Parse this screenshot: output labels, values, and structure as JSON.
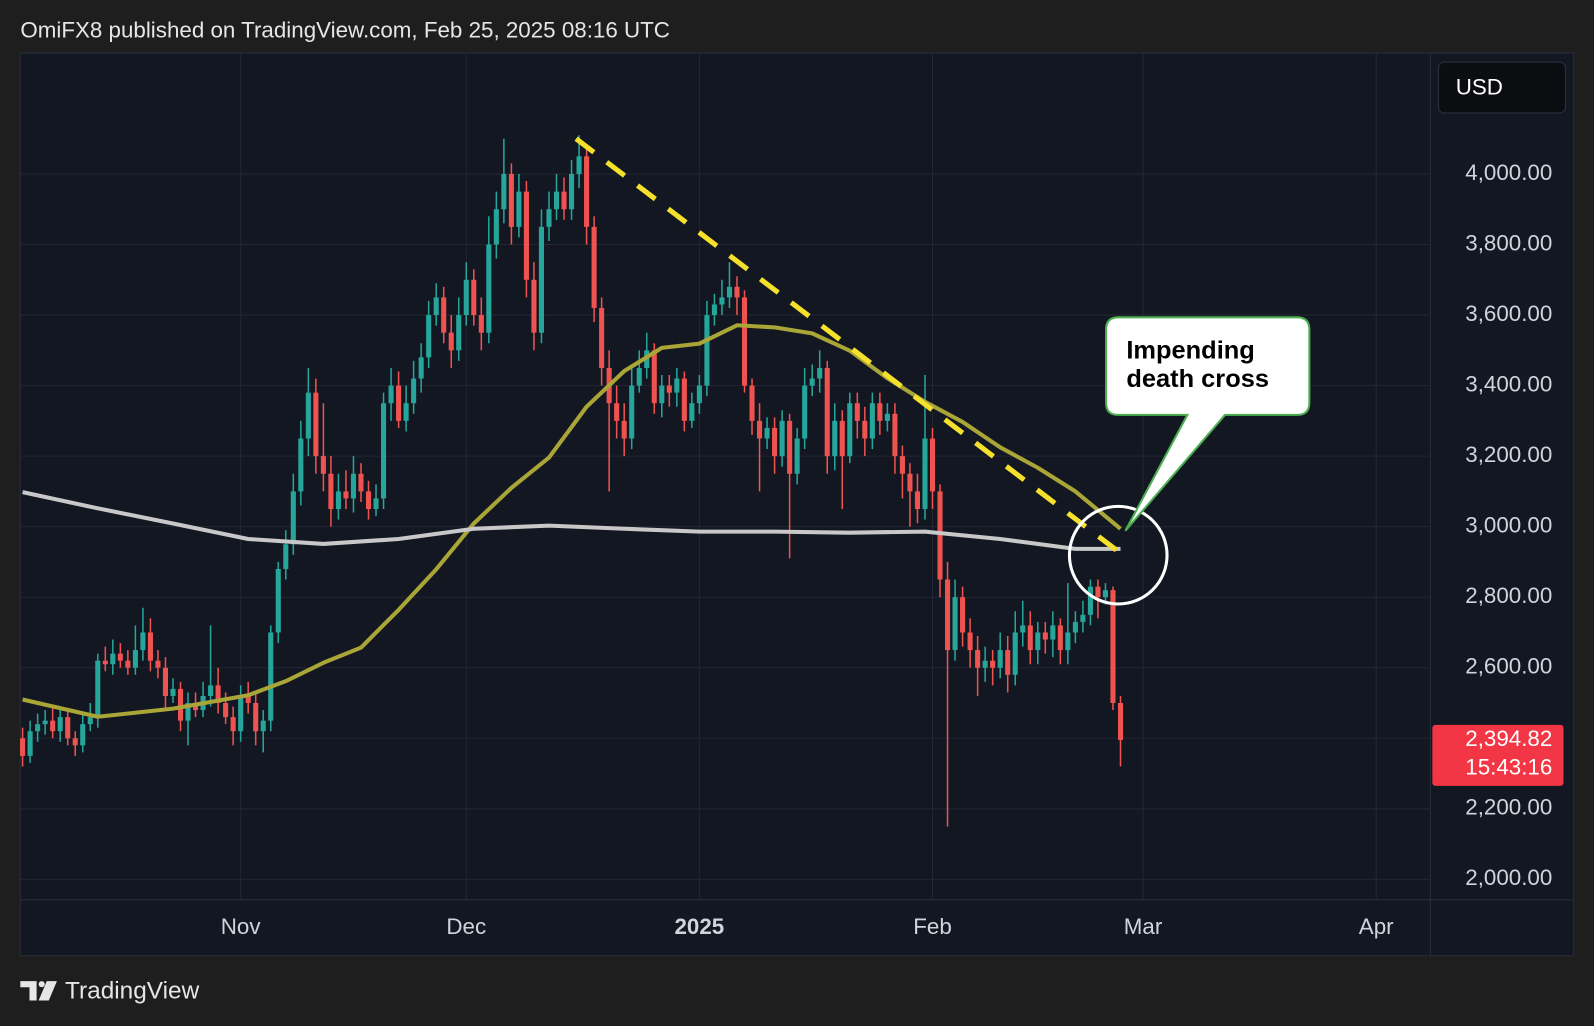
{
  "chart_data": {
    "type": "candlestick",
    "title": "OmiFX8 published on TradingView.com, Feb 25, 2025 08:16 UTC",
    "currency": "USD",
    "watermark": "TradingView",
    "annotation": [
      "Impending",
      "death cross"
    ],
    "last_price": {
      "value": 2394.82,
      "label": "2,394.82"
    },
    "countdown": "15:43:16",
    "up_color": "#26a69a",
    "down_color": "#ef5350",
    "grid": true,
    "xlim": [
      -0.3,
      187.2
    ],
    "xticks": [
      {
        "value": 29,
        "label": "Nov"
      },
      {
        "value": 59,
        "label": "Dec"
      },
      {
        "value": 90,
        "label": "2025"
      },
      {
        "value": 121,
        "label": "Feb"
      },
      {
        "value": 149,
        "label": "Mar"
      },
      {
        "value": 180,
        "label": "Apr"
      }
    ],
    "ylim": [
      1942,
      4343
    ],
    "yticks": [
      {
        "value": 2000,
        "label": "2,000.00"
      },
      {
        "value": 2200,
        "label": "2,200.00"
      },
      {
        "value": 2400,
        "label": "2,400.00"
      },
      {
        "value": 2600,
        "label": "2,600.00"
      },
      {
        "value": 2800,
        "label": "2,800.00"
      },
      {
        "value": 3000,
        "label": "3,000.00"
      },
      {
        "value": 3200,
        "label": "3,200.00"
      },
      {
        "value": 3400,
        "label": "3,400.00"
      },
      {
        "value": 3600,
        "label": "3,600.00"
      },
      {
        "value": 3800,
        "label": "3,800.00"
      },
      {
        "value": 4000,
        "label": "4,000.00"
      }
    ],
    "candles": {
      "open": [
        2400,
        2350,
        2420,
        2440,
        2450,
        2420,
        2460,
        2400,
        2380,
        2440,
        2460,
        2620,
        2610,
        2640,
        2620,
        2600,
        2650,
        2700,
        2620,
        2600,
        2520,
        2540,
        2450,
        2500,
        2480,
        2520,
        2550,
        2500,
        2460,
        2420,
        2520,
        2500,
        2420,
        2450,
        2700,
        2880,
        2950,
        3100,
        3250,
        3380,
        3200,
        3150,
        3050,
        3100,
        3080,
        3150,
        3100,
        3050,
        3080,
        3350,
        3400,
        3300,
        3350,
        3420,
        3480,
        3600,
        3650,
        3550,
        3500,
        3600,
        3700,
        3600,
        3550,
        3800,
        3900,
        4000,
        3850,
        3950,
        3700,
        3550,
        3850,
        3900,
        3950,
        3900,
        4000,
        4050,
        3850,
        3620,
        3450,
        3350,
        3300,
        3250,
        3400,
        3450,
        3500,
        3350,
        3400,
        3380,
        3420,
        3300,
        3350,
        3400,
        3600,
        3630,
        3650,
        3680,
        3650,
        3400,
        3300,
        3250,
        3280,
        3200,
        3300,
        3150,
        3250,
        3400,
        3420,
        3450,
        3200,
        3300,
        3200,
        3350,
        3300,
        3250,
        3350,
        3300,
        3320,
        3200,
        3150,
        3100,
        3050,
        3250,
        3100,
        2850,
        2650,
        2800,
        2700,
        2650,
        2600,
        2620,
        2600,
        2650,
        2580,
        2700,
        2720,
        2650,
        2700,
        2680,
        2720,
        2650,
        2700,
        2730,
        2750,
        2830,
        2800,
        2820,
        2500
      ],
      "high": [
        2430,
        2450,
        2470,
        2480,
        2490,
        2490,
        2480,
        2420,
        2470,
        2500,
        2640,
        2660,
        2680,
        2670,
        2650,
        2720,
        2770,
        2740,
        2650,
        2630,
        2570,
        2560,
        2530,
        2530,
        2560,
        2720,
        2600,
        2530,
        2490,
        2550,
        2560,
        2530,
        2480,
        2720,
        2900,
        2990,
        3150,
        3300,
        3450,
        3420,
        3350,
        3200,
        3150,
        3160,
        3200,
        3180,
        3130,
        3120,
        3380,
        3450,
        3440,
        3400,
        3470,
        3520,
        3640,
        3690,
        3680,
        3600,
        3650,
        3750,
        3730,
        3650,
        3880,
        3950,
        4100,
        4030,
        4000,
        3980,
        3750,
        3900,
        3950,
        4000,
        3990,
        4040,
        4110,
        4080,
        3880,
        3650,
        3500,
        3400,
        3350,
        3450,
        3500,
        3550,
        3520,
        3430,
        3430,
        3450,
        3440,
        3380,
        3430,
        3640,
        3660,
        3700,
        3750,
        3710,
        3670,
        3420,
        3350,
        3310,
        3310,
        3330,
        3320,
        3280,
        3450,
        3460,
        3500,
        3470,
        3350,
        3330,
        3380,
        3380,
        3340,
        3380,
        3380,
        3350,
        3350,
        3230,
        3180,
        3150,
        3430,
        3280,
        3120,
        2900,
        2850,
        2830,
        2740,
        2690,
        2660,
        2650,
        2700,
        2690,
        2760,
        2790,
        2760,
        2730,
        2730,
        2760,
        2740,
        2840,
        2760,
        2790,
        2850,
        2850,
        2840,
        2830,
        2520
      ],
      "low": [
        2320,
        2330,
        2390,
        2410,
        2400,
        2390,
        2380,
        2350,
        2360,
        2420,
        2430,
        2590,
        2580,
        2600,
        2580,
        2580,
        2620,
        2590,
        2570,
        2480,
        2500,
        2420,
        2380,
        2460,
        2460,
        2490,
        2470,
        2440,
        2380,
        2390,
        2470,
        2380,
        2360,
        2420,
        2670,
        2850,
        2920,
        3060,
        3200,
        3150,
        3100,
        3000,
        3020,
        3050,
        3040,
        3070,
        3020,
        3030,
        3050,
        3300,
        3280,
        3270,
        3320,
        3380,
        3450,
        3570,
        3520,
        3450,
        3470,
        3570,
        3570,
        3500,
        3520,
        3760,
        3860,
        3800,
        3820,
        3650,
        3500,
        3520,
        3810,
        3870,
        3870,
        3870,
        3960,
        3800,
        3580,
        3400,
        3100,
        3250,
        3200,
        3220,
        3380,
        3420,
        3320,
        3310,
        3340,
        3340,
        3270,
        3280,
        3320,
        3370,
        3570,
        3600,
        3620,
        3600,
        3380,
        3260,
        3100,
        3220,
        3150,
        3170,
        2910,
        3120,
        3220,
        3370,
        3380,
        3150,
        3160,
        3050,
        3180,
        3250,
        3200,
        3220,
        3260,
        3270,
        3150,
        3080,
        3000,
        3010,
        3020,
        3050,
        2800,
        2150,
        2620,
        2660,
        2600,
        2520,
        2560,
        2550,
        2570,
        2530,
        2550,
        2660,
        2610,
        2610,
        2640,
        2630,
        2610,
        2610,
        2670,
        2700,
        2720,
        2740,
        2780,
        2480,
        2320
      ],
      "close": [
        2350,
        2420,
        2440,
        2450,
        2420,
        2460,
        2400,
        2380,
        2440,
        2460,
        2620,
        2610,
        2640,
        2620,
        2600,
        2650,
        2700,
        2620,
        2600,
        2520,
        2540,
        2450,
        2500,
        2480,
        2520,
        2550,
        2500,
        2460,
        2420,
        2520,
        2500,
        2420,
        2450,
        2700,
        2880,
        2950,
        3100,
        3250,
        3380,
        3200,
        3150,
        3050,
        3100,
        3080,
        3150,
        3100,
        3050,
        3080,
        3350,
        3400,
        3300,
        3350,
        3420,
        3480,
        3600,
        3650,
        3550,
        3500,
        3600,
        3700,
        3600,
        3550,
        3800,
        3900,
        4000,
        3850,
        3950,
        3700,
        3550,
        3850,
        3900,
        3950,
        3900,
        4000,
        4050,
        3850,
        3620,
        3450,
        3350,
        3300,
        3250,
        3400,
        3450,
        3500,
        3350,
        3400,
        3380,
        3420,
        3300,
        3350,
        3400,
        3600,
        3630,
        3650,
        3680,
        3650,
        3400,
        3300,
        3250,
        3280,
        3200,
        3300,
        3150,
        3250,
        3400,
        3420,
        3450,
        3200,
        3300,
        3200,
        3350,
        3300,
        3250,
        3350,
        3300,
        3320,
        3200,
        3150,
        3100,
        3050,
        3250,
        3100,
        2850,
        2650,
        2800,
        2700,
        2650,
        2600,
        2620,
        2600,
        2650,
        2580,
        2700,
        2720,
        2650,
        2700,
        2680,
        2720,
        2650,
        2700,
        2730,
        2750,
        2830,
        2800,
        2820,
        2500,
        2395
      ]
    },
    "series": [
      {
        "color": "#aaa537",
        "x": [
          0,
          10,
          20,
          30,
          35,
          40,
          45,
          50,
          55,
          60,
          65,
          70,
          75,
          80,
          85,
          90,
          95,
          100,
          105,
          110,
          115,
          120,
          125,
          130,
          135,
          140,
          146
        ],
        "values": [
          2510,
          2461,
          2484,
          2522,
          2562,
          2614,
          2657,
          2764,
          2879,
          3009,
          3110,
          3196,
          3340,
          3441,
          3507,
          3519,
          3571,
          3565,
          3548,
          3499,
          3421,
          3354,
          3297,
          3225,
          3167,
          3100,
          2994
        ]
      },
      {
        "color": "#c8c8c8",
        "x": [
          0,
          10,
          20,
          30,
          40,
          50,
          60,
          70,
          80,
          90,
          100,
          110,
          120,
          130,
          140,
          146
        ],
        "values": [
          3098,
          3052,
          3009,
          2965,
          2951,
          2965,
          2994,
          3003,
          2994,
          2986,
          2986,
          2983,
          2986,
          2965,
          2937,
          2937
        ]
      },
      {
        "color": "#f5e12b",
        "dashed": true,
        "x": [
          73.6,
          146.6
        ],
        "values": [
          4100,
          2915
        ]
      }
    ]
  }
}
